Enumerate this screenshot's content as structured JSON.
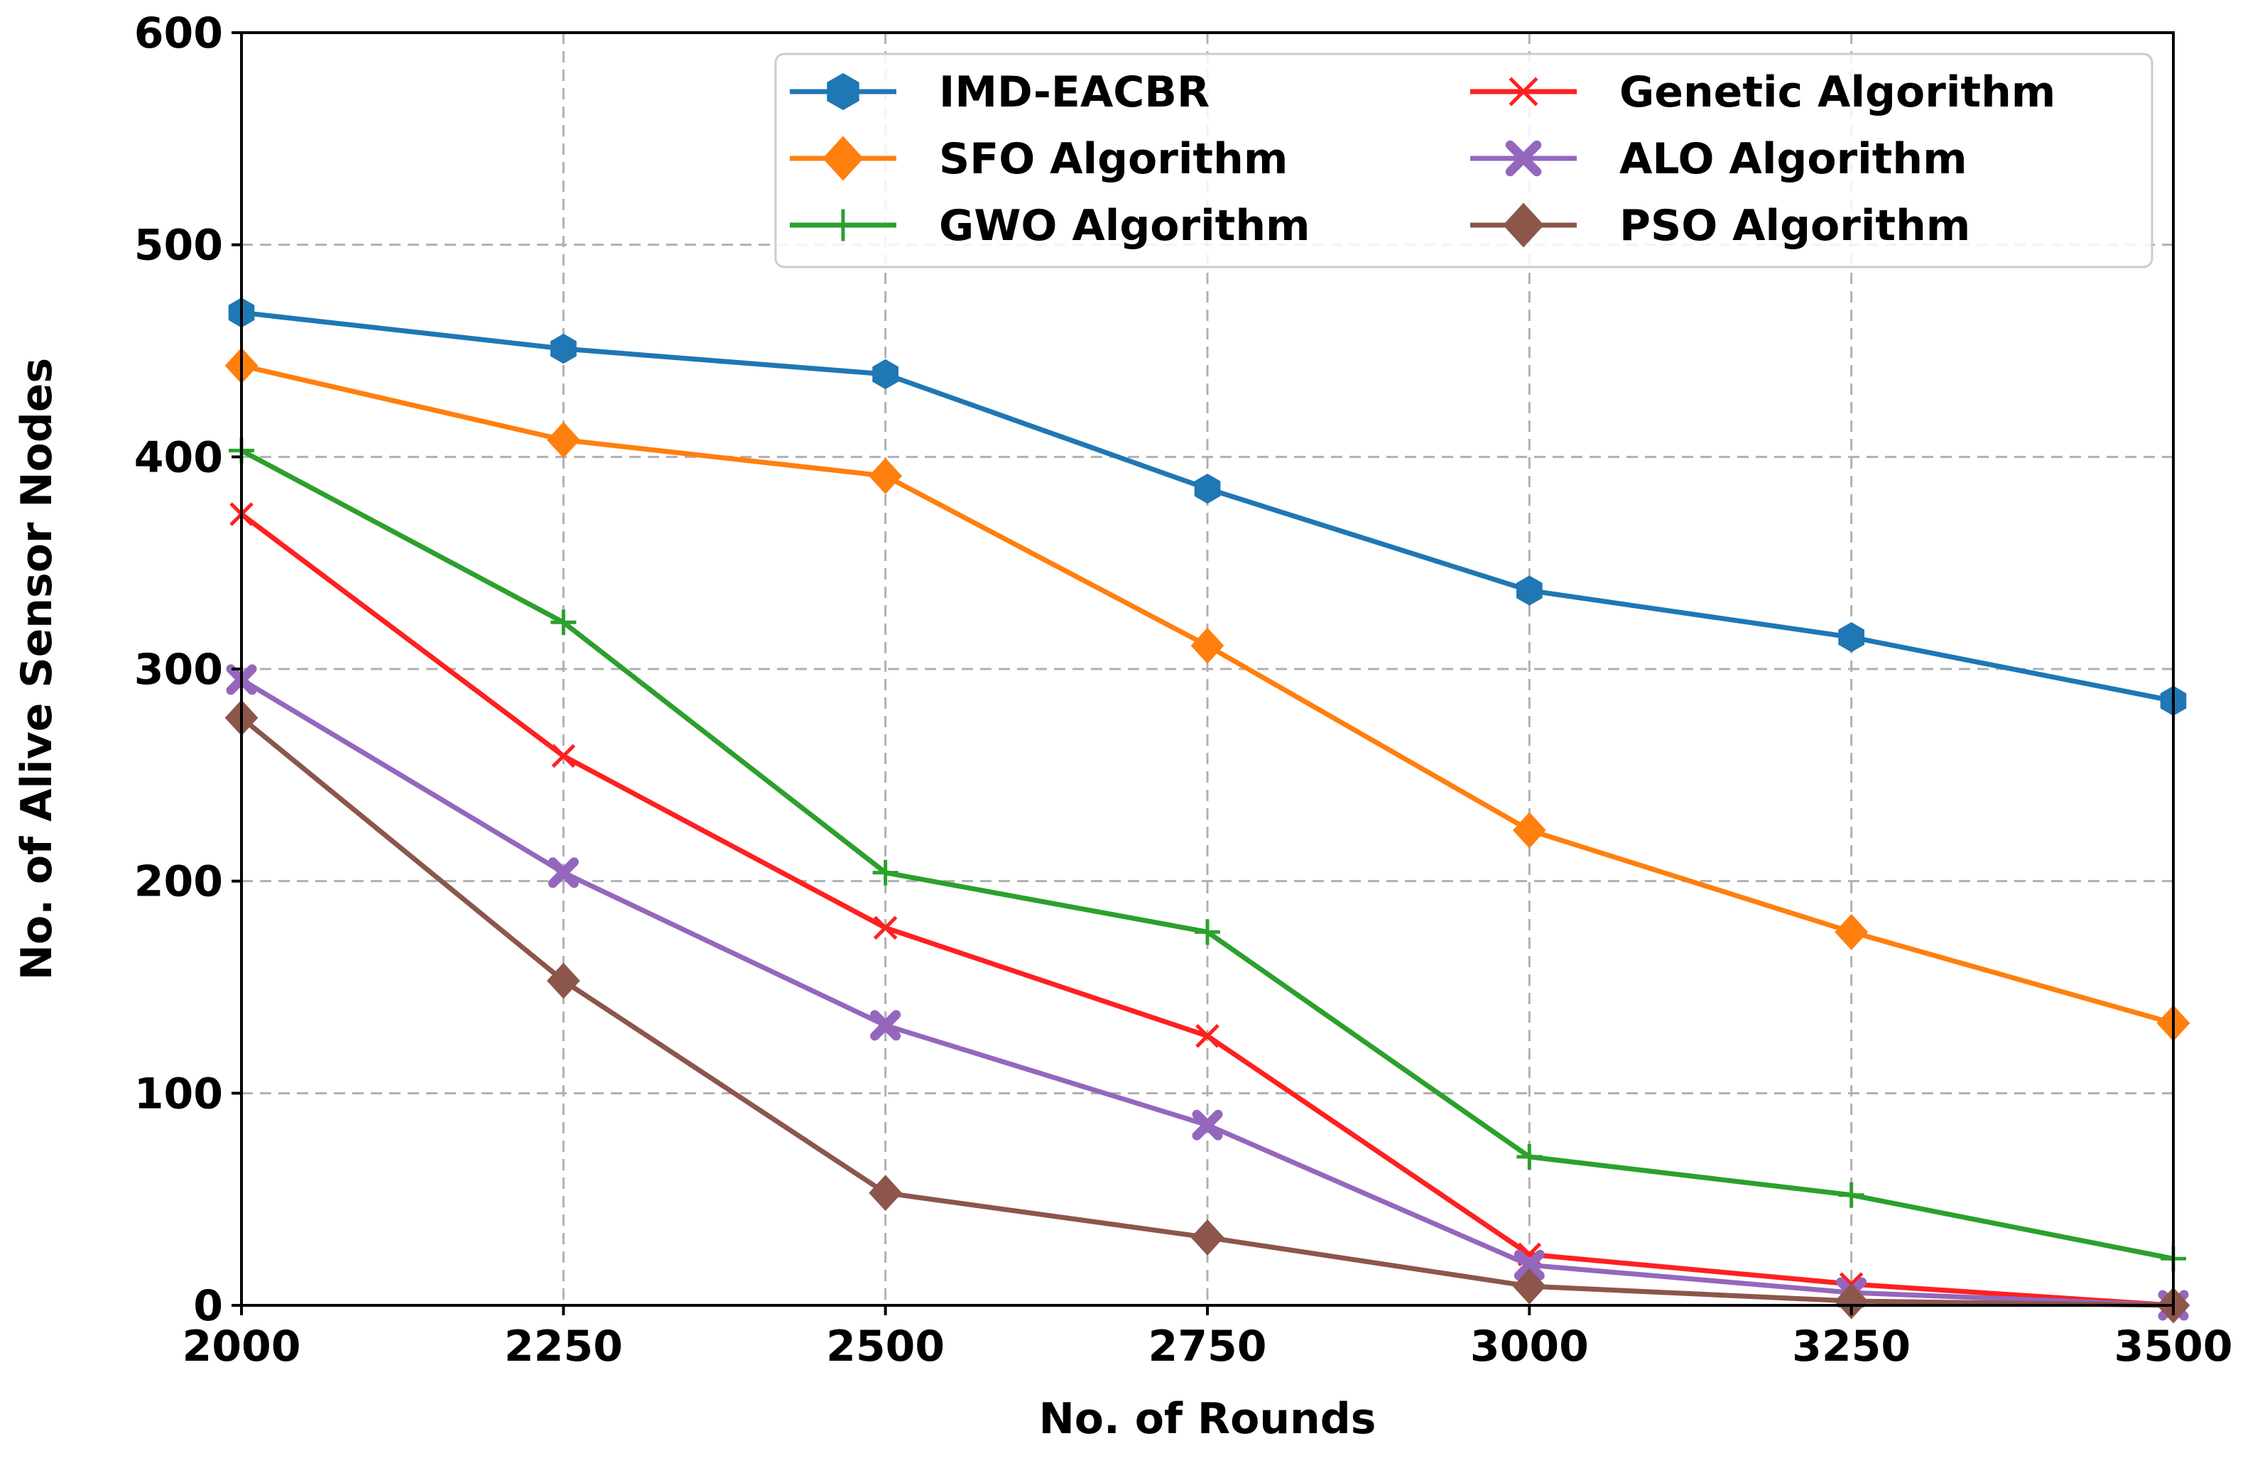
{
  "chart_data": {
    "type": "line",
    "title": "",
    "xlabel": "No. of Rounds",
    "ylabel": "No. of Alive Sensor Nodes",
    "x": [
      2000,
      2250,
      2500,
      2750,
      3000,
      3250,
      3500
    ],
    "xlim": [
      2000,
      3500
    ],
    "ylim": [
      0,
      600
    ],
    "xticks": [
      "2000",
      "2250",
      "2500",
      "2750",
      "3000",
      "3250",
      "3500"
    ],
    "yticks": [
      "0",
      "100",
      "200",
      "300",
      "400",
      "500",
      "600"
    ],
    "grid": true,
    "legend_position": "top-right",
    "series": [
      {
        "name": "IMD-EACBR",
        "color": "#1f77b4",
        "marker": "hexagon",
        "values": [
          468,
          451,
          439,
          385,
          337,
          315,
          285
        ]
      },
      {
        "name": "SFO Algorithm",
        "color": "#ff7f0e",
        "marker": "diamond",
        "values": [
          443,
          408,
          391,
          311,
          224,
          176,
          133
        ]
      },
      {
        "name": "GWO Algorithm",
        "color": "#2ca02c",
        "marker": "plus",
        "values": [
          403,
          322,
          204,
          176,
          70,
          52,
          22
        ]
      },
      {
        "name": "Genetic Algorithm",
        "color": "#ff2020",
        "marker": "x",
        "values": [
          373,
          259,
          178,
          127,
          24,
          10,
          0
        ]
      },
      {
        "name": "ALO Algorithm",
        "color": "#9467bd",
        "marker": "filled-x",
        "values": [
          295,
          204,
          132,
          85,
          19,
          6,
          0
        ]
      },
      {
        "name": "PSO Algorithm",
        "color": "#8c564b",
        "marker": "diamond",
        "values": [
          277,
          153,
          53,
          32,
          9,
          2,
          0
        ]
      }
    ]
  }
}
